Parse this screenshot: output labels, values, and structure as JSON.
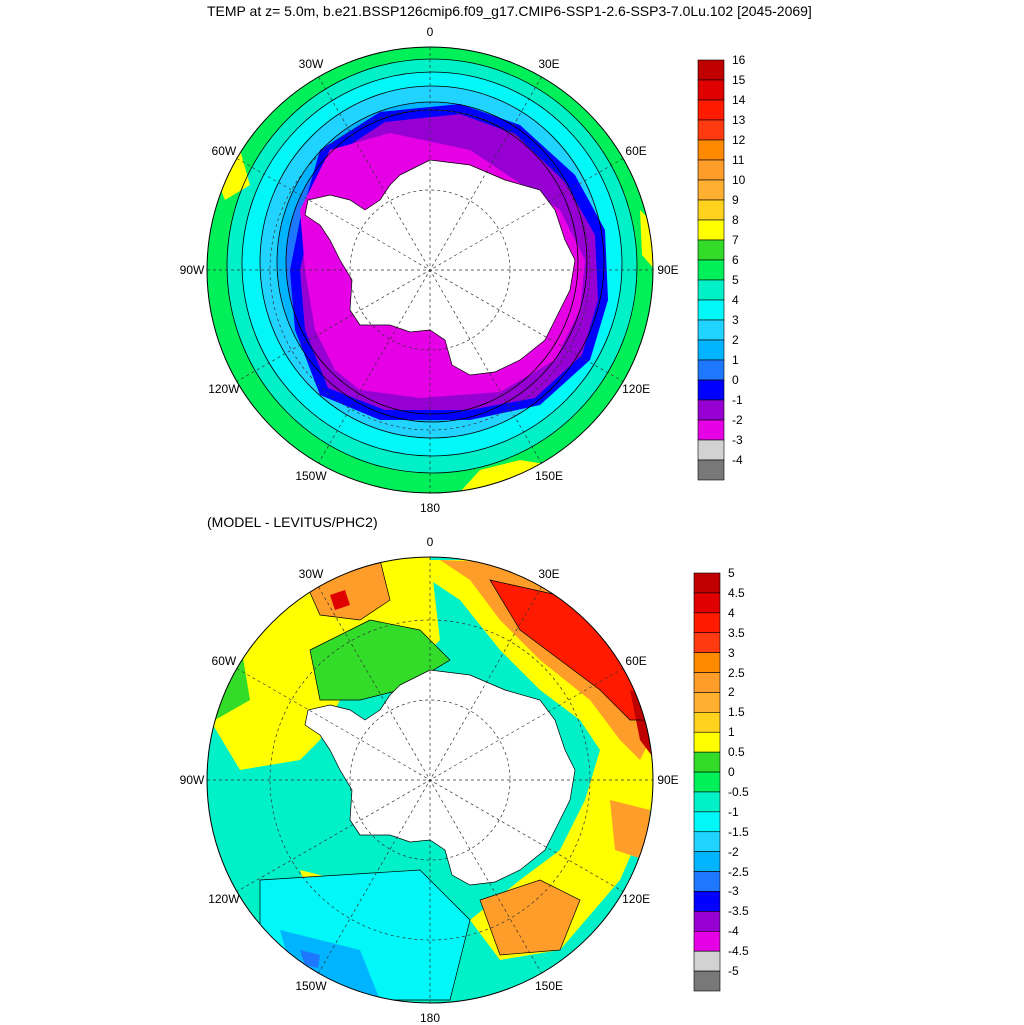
{
  "title": "TEMP at z=   5.0m, b.e21.BSSP126cmip6.f09_g17.CMIP6-SSP1-2.6-SSP3-7.0Lu.102 [2045-2069]",
  "subtitle": "(MODEL - LEVITUS/PHC2)",
  "longitude_labels": [
    "0",
    "30E",
    "60E",
    "90E",
    "120E",
    "150E",
    "180",
    "150W",
    "120W",
    "90W",
    "60W",
    "30W"
  ],
  "colorbar_top": {
    "labels": [
      "16",
      "15",
      "14",
      "13",
      "12",
      "11",
      "10",
      "9",
      "8",
      "7",
      "6",
      "5",
      "4",
      "3",
      "2",
      "1",
      "0",
      "-1",
      "-2",
      "-3",
      "-4"
    ],
    "colors": [
      "#c00000",
      "#e00000",
      "#ff1a00",
      "#ff3a10",
      "#ff8a00",
      "#ff9d2a",
      "#ffb030",
      "#ffd21e",
      "#ffff00",
      "#32dc28",
      "#00f05a",
      "#00f0c8",
      "#00f8f8",
      "#20d4ff",
      "#00b4ff",
      "#1e78ff",
      "#0000ff",
      "#9600d2",
      "#e600e6",
      "#d2d2d2",
      "#787878"
    ]
  },
  "colorbar_bottom": {
    "labels": [
      "5",
      "4.5",
      "4",
      "3.5",
      "3",
      "2.5",
      "2",
      "1.5",
      "1",
      "0.5",
      "0",
      "-0.5",
      "-1",
      "-1.5",
      "-2",
      "-2.5",
      "-3",
      "-3.5",
      "-4",
      "-4.5",
      "-5"
    ],
    "colors": [
      "#c00000",
      "#e00000",
      "#ff1a00",
      "#ff3a10",
      "#ff8a00",
      "#ff9d2a",
      "#ffb030",
      "#ffd21e",
      "#ffff00",
      "#32dc28",
      "#00f05a",
      "#00f0c8",
      "#00f8f8",
      "#20d4ff",
      "#00b4ff",
      "#1e78ff",
      "#0000ff",
      "#9600d2",
      "#e600e6",
      "#d2d2d2",
      "#787878"
    ]
  }
}
